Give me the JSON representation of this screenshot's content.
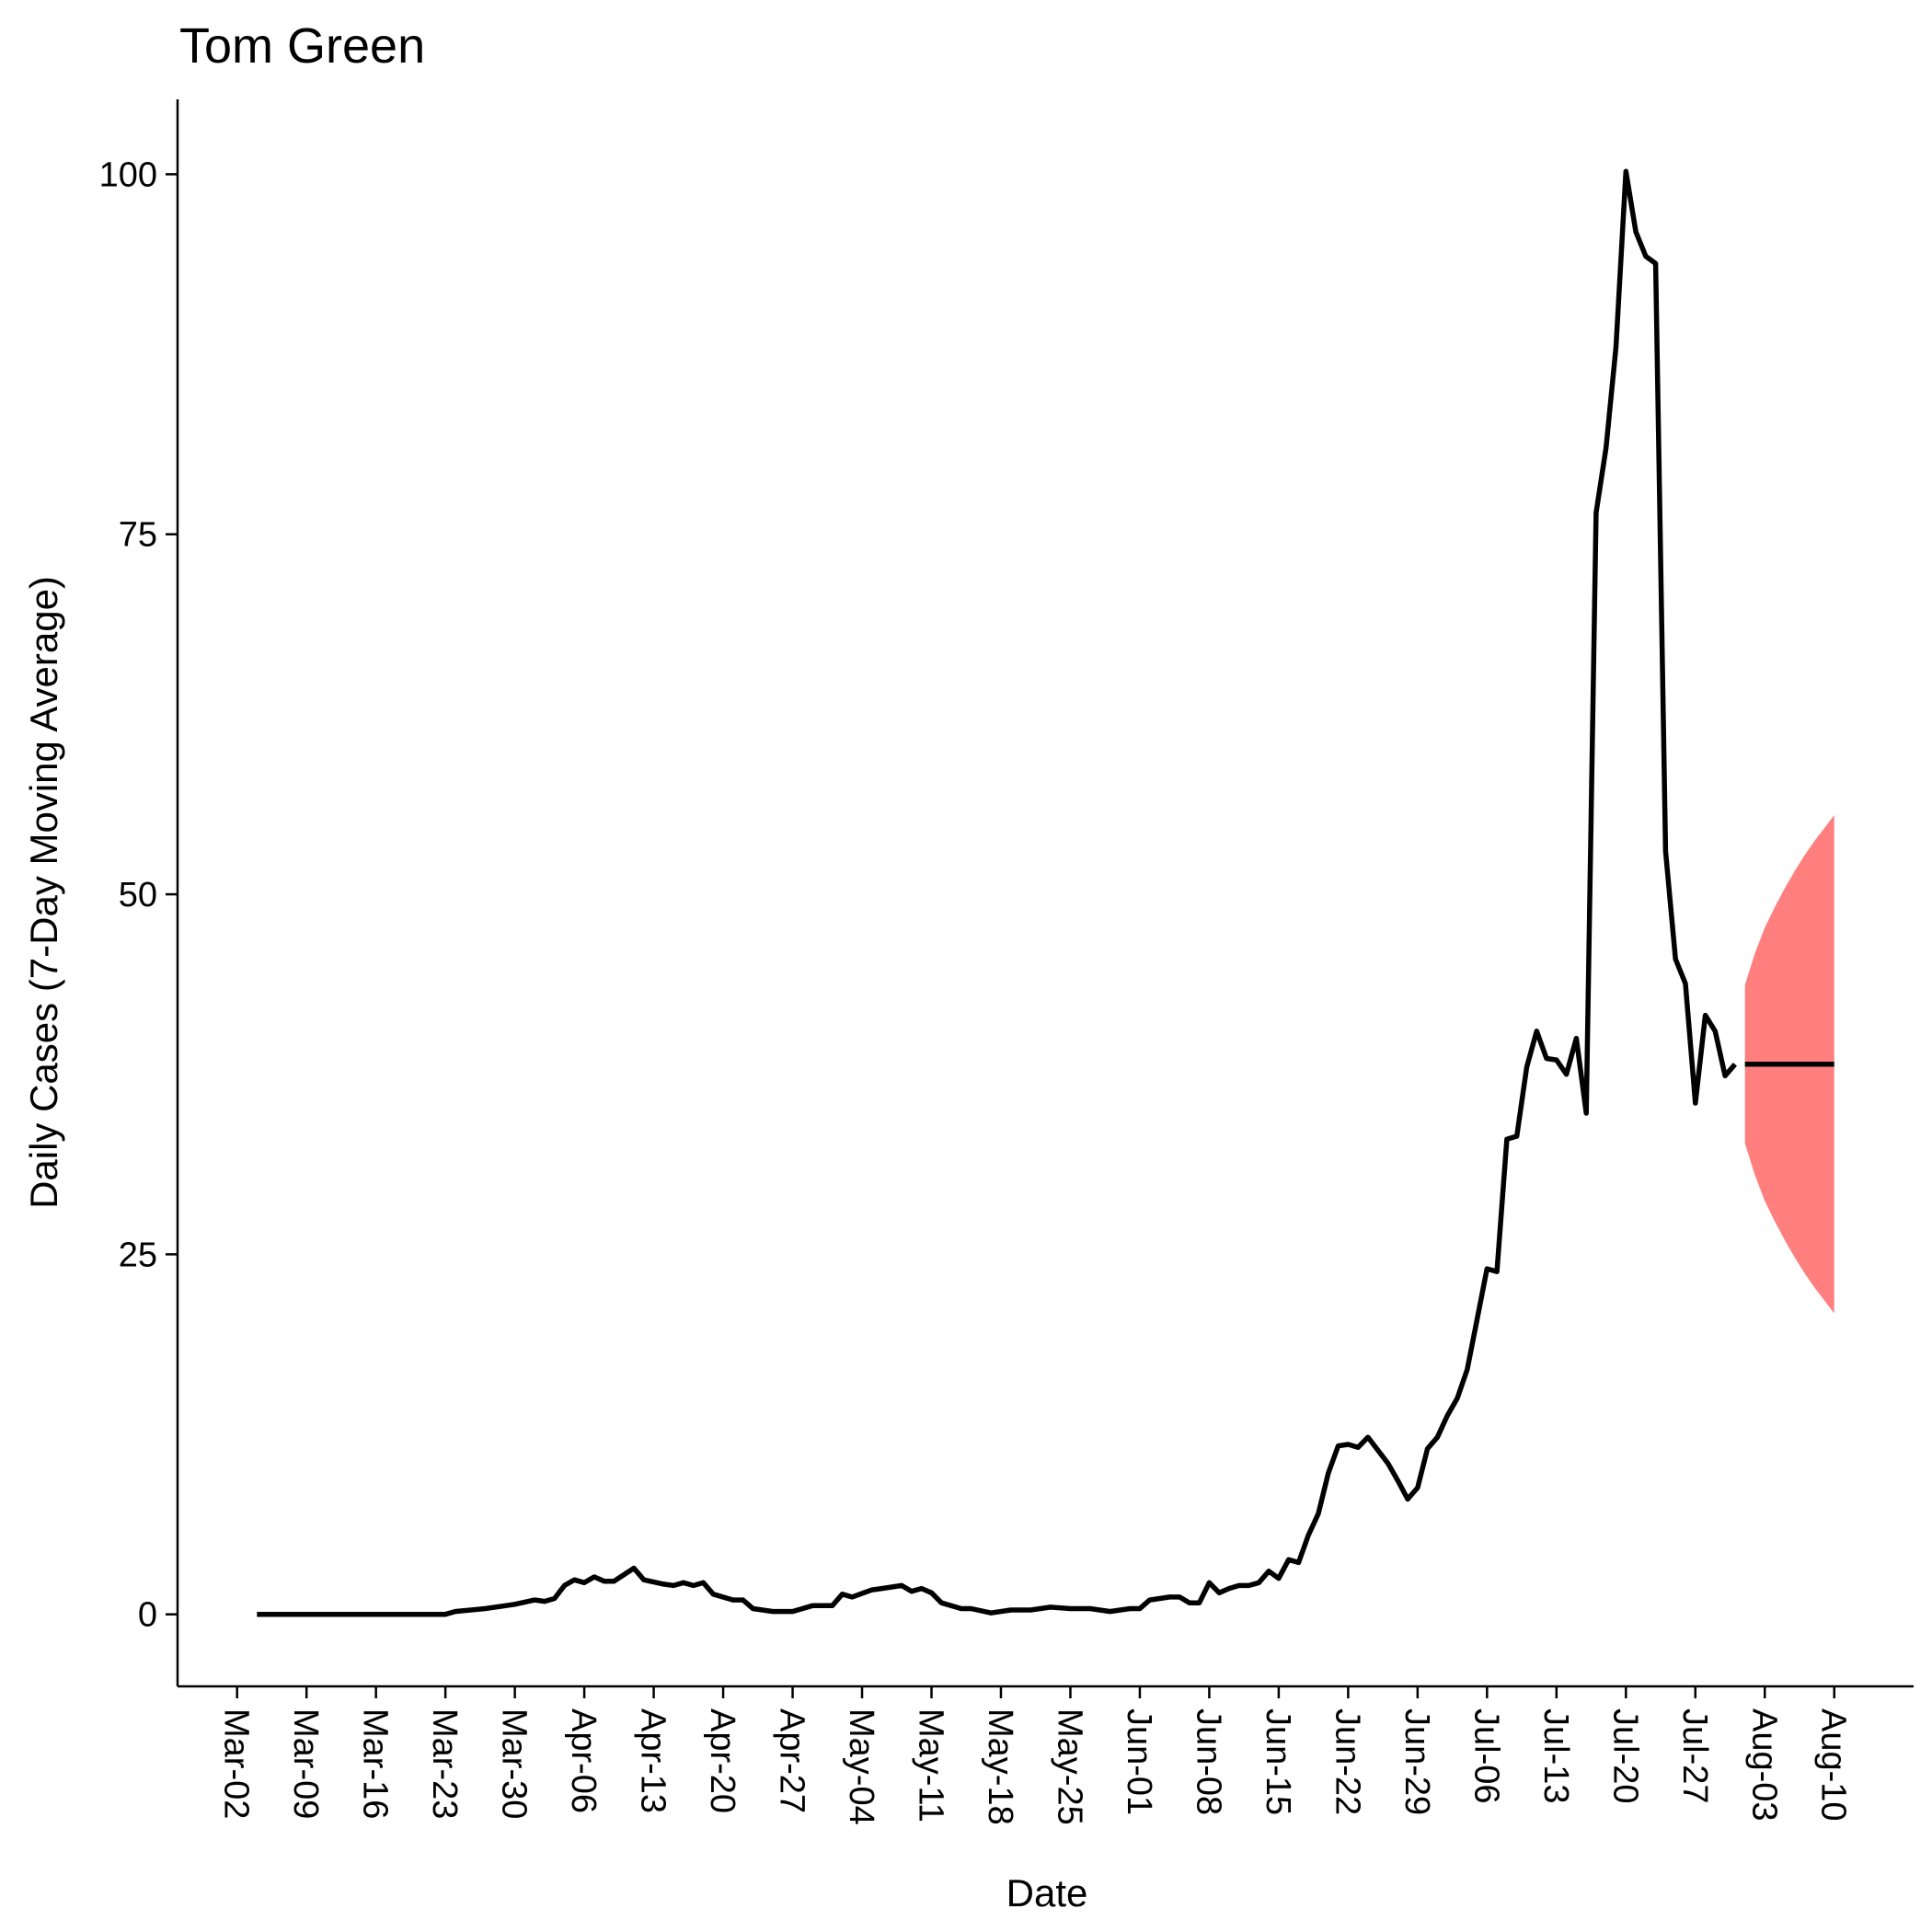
{
  "chart_data": {
    "type": "line",
    "title": "Tom Green",
    "xlabel": "Date",
    "ylabel": "Daily Cases (7-Day Moving Average)",
    "series": [
      {
        "color": "#000000",
        "x": [
          "Mar-04",
          "Mar-23",
          "Mar-24",
          "Mar-27",
          "Mar-30",
          "Apr-01",
          "Apr-02",
          "Apr-03",
          "Apr-04",
          "Apr-05",
          "Apr-06",
          "Apr-07",
          "Apr-08",
          "Apr-09",
          "Apr-11",
          "Apr-12",
          "Apr-14",
          "Apr-15",
          "Apr-16",
          "Apr-17",
          "Apr-18",
          "Apr-19",
          "Apr-21",
          "Apr-22",
          "Apr-23",
          "Apr-25",
          "Apr-27",
          "Apr-29",
          "May-01",
          "May-02",
          "May-03",
          "May-05",
          "May-06",
          "May-08",
          "May-09",
          "May-10",
          "May-11",
          "May-12",
          "May-14",
          "May-15",
          "May-17",
          "May-19",
          "May-21",
          "May-23",
          "May-25",
          "May-27",
          "May-29",
          "May-31",
          "Jun-01",
          "Jun-02",
          "Jun-04",
          "Jun-05",
          "Jun-06",
          "Jun-07",
          "Jun-08",
          "Jun-09",
          "Jun-10",
          "Jun-11",
          "Jun-12",
          "Jun-13",
          "Jun-14",
          "Jun-15",
          "Jun-16",
          "Jun-17",
          "Jun-18",
          "Jun-19",
          "Jun-20",
          "Jun-21",
          "Jun-22",
          "Jun-23",
          "Jun-24",
          "Jun-25",
          "Jun-26",
          "Jun-27",
          "Jun-28",
          "Jun-29",
          "Jun-30",
          "Jul-01",
          "Jul-02",
          "Jul-03",
          "Jul-04",
          "Jul-05",
          "Jul-06",
          "Jul-07",
          "Jul-08",
          "Jul-09",
          "Jul-10",
          "Jul-11",
          "Jul-12",
          "Jul-13",
          "Jul-14",
          "Jul-15",
          "Jul-16",
          "Jul-17",
          "Jul-18",
          "Jul-19",
          "Jul-20",
          "Jul-21",
          "Jul-22",
          "Jul-23",
          "Jul-24",
          "Jul-25",
          "Jul-26",
          "Jul-27",
          "Jul-28",
          "Jul-29",
          "Jul-30",
          "Jul-31"
        ],
        "values": [
          0,
          0,
          0.2,
          0.4,
          0.7,
          1.0,
          0.9,
          1.1,
          2.0,
          2.4,
          2.2,
          2.6,
          2.3,
          2.3,
          3.2,
          2.4,
          2.1,
          2.0,
          2.2,
          2.0,
          2.2,
          1.4,
          1.0,
          1.0,
          0.4,
          0.2,
          0.2,
          0.6,
          0.6,
          1.4,
          1.2,
          1.7,
          1.8,
          2.0,
          1.6,
          1.8,
          1.5,
          0.8,
          0.4,
          0.4,
          0.1,
          0.3,
          0.3,
          0.5,
          0.4,
          0.4,
          0.2,
          0.4,
          0.4,
          1.0,
          1.2,
          1.2,
          0.8,
          0.8,
          2.2,
          1.5,
          1.8,
          2.0,
          2.0,
          2.2,
          3.0,
          2.5,
          3.8,
          3.6,
          5.5,
          7.0,
          9.8,
          11.7,
          11.8,
          11.6,
          12.3,
          11.4,
          10.5,
          9.3,
          8.0,
          8.8,
          11.5,
          12.3,
          13.8,
          15.0,
          17.0,
          20.5,
          24.0,
          23.8,
          33.0,
          33.2,
          38.0,
          40.5,
          38.6,
          38.5,
          37.5,
          40.0,
          34.8,
          76.5,
          81.0,
          88.0,
          100.2,
          96.0,
          94.3,
          93.8,
          53.0,
          45.5,
          43.8,
          35.5,
          41.6,
          40.5,
          37.4,
          38.2
        ]
      },
      {
        "color": "#000000",
        "x": [
          "Aug-01",
          "Aug-02",
          "Aug-03",
          "Aug-04",
          "Aug-05",
          "Aug-06",
          "Aug-07",
          "Aug-08",
          "Aug-09",
          "Aug-10"
        ],
        "values": [
          38.2,
          38.2,
          38.2,
          38.2,
          38.2,
          38.2,
          38.2,
          38.2,
          38.2,
          38.2
        ]
      }
    ],
    "ribbon": {
      "color": "#ff7f7f",
      "x": [
        "Aug-01",
        "Aug-02",
        "Aug-03",
        "Aug-04",
        "Aug-05",
        "Aug-06",
        "Aug-07",
        "Aug-08",
        "Aug-09",
        "Aug-10"
      ],
      "lower": [
        32.7,
        30.5,
        28.7,
        27.3,
        26.0,
        24.8,
        23.7,
        22.7,
        21.8,
        20.9
      ],
      "upper": [
        43.7,
        45.9,
        47.7,
        49.1,
        50.4,
        51.6,
        52.7,
        53.7,
        54.6,
        55.5
      ]
    },
    "xlim": [
      "Feb-25",
      "Aug-18"
    ],
    "ylim": [
      -5,
      105.2
    ],
    "xticks": [
      "Mar-02",
      "Mar-09",
      "Mar-16",
      "Mar-23",
      "Mar-30",
      "Apr-06",
      "Apr-13",
      "Apr-20",
      "Apr-27",
      "May-04",
      "May-11",
      "May-18",
      "May-25",
      "Jun-01",
      "Jun-08",
      "Jun-15",
      "Jun-22",
      "Jun-29",
      "Jul-06",
      "Jul-13",
      "Jul-20",
      "Jul-27",
      "Aug-03",
      "Aug-10"
    ],
    "yticks": [
      0,
      25,
      50,
      75,
      100
    ]
  }
}
